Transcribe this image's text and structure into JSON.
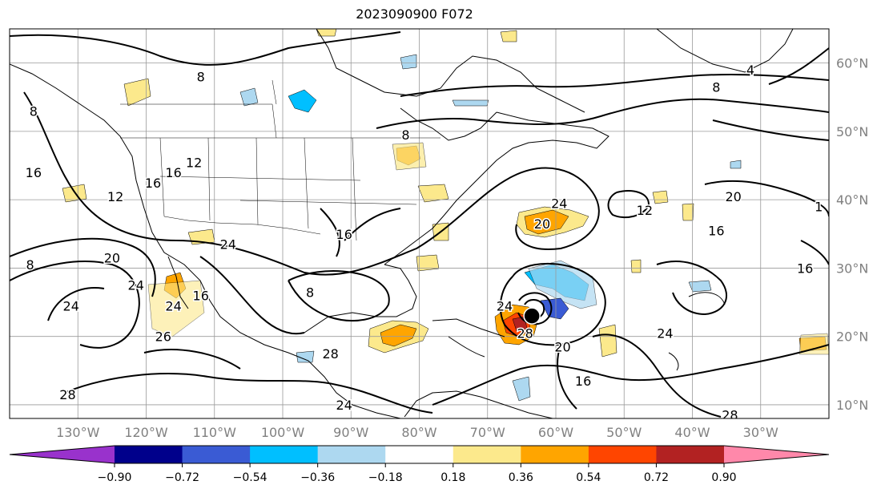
{
  "title": "2023090900 F072",
  "map": {
    "lon_range": [
      -140,
      -20
    ],
    "lat_range": [
      8,
      65
    ],
    "lon_ticks": [
      {
        "value": -130,
        "label": "130°W"
      },
      {
        "value": -120,
        "label": "120°W"
      },
      {
        "value": -110,
        "label": "110°W"
      },
      {
        "value": -100,
        "label": "100°W"
      },
      {
        "value": -90,
        "label": "90°W"
      },
      {
        "value": -80,
        "label": "80°W"
      },
      {
        "value": -70,
        "label": "70°W"
      },
      {
        "value": -60,
        "label": "60°W"
      },
      {
        "value": -50,
        "label": "50°W"
      },
      {
        "value": -40,
        "label": "40°W"
      },
      {
        "value": -30,
        "label": "30°W"
      }
    ],
    "lat_ticks": [
      {
        "value": 10,
        "label": "10°N"
      },
      {
        "value": 20,
        "label": "20°N"
      },
      {
        "value": 30,
        "label": "30°N"
      },
      {
        "value": 40,
        "label": "40°N"
      },
      {
        "value": 50,
        "label": "50°N"
      },
      {
        "value": 60,
        "label": "60°N"
      }
    ],
    "grid": true,
    "storm_marker": {
      "lon": -63.5,
      "lat": 23
    }
  },
  "contour_labels": [
    {
      "text": "8",
      "lon": -112,
      "lat": 58
    },
    {
      "text": "8",
      "lon": -136.5,
      "lat": 53
    },
    {
      "text": "8",
      "lon": -82,
      "lat": 49.5
    },
    {
      "text": "8",
      "lon": -36.5,
      "lat": 56.5
    },
    {
      "text": "4",
      "lon": -31.5,
      "lat": 59
    },
    {
      "text": "16",
      "lon": -136.5,
      "lat": 44
    },
    {
      "text": "12",
      "lon": -124.5,
      "lat": 40.5
    },
    {
      "text": "16",
      "lon": -119,
      "lat": 42.5
    },
    {
      "text": "16",
      "lon": -116,
      "lat": 44
    },
    {
      "text": "12",
      "lon": -113,
      "lat": 45.5
    },
    {
      "text": "24",
      "lon": -108,
      "lat": 33.5
    },
    {
      "text": "16",
      "lon": -91,
      "lat": 35
    },
    {
      "text": "8",
      "lon": -137,
      "lat": 30.5
    },
    {
      "text": "20",
      "lon": -125,
      "lat": 31.5
    },
    {
      "text": "24",
      "lon": -121.5,
      "lat": 27.5
    },
    {
      "text": "24",
      "lon": -131,
      "lat": 24.5
    },
    {
      "text": "26",
      "lon": -117.5,
      "lat": 20
    },
    {
      "text": "24",
      "lon": -116,
      "lat": 24.5
    },
    {
      "text": "16",
      "lon": -112,
      "lat": 26
    },
    {
      "text": "8",
      "lon": -96,
      "lat": 26.5
    },
    {
      "text": "28",
      "lon": -93,
      "lat": 17.5
    },
    {
      "text": "28",
      "lon": -131.5,
      "lat": 11.5
    },
    {
      "text": "24",
      "lon": -91,
      "lat": 10
    },
    {
      "text": "24",
      "lon": -59.5,
      "lat": 39.5
    },
    {
      "text": "20",
      "lon": -62,
      "lat": 36.5
    },
    {
      "text": "12",
      "lon": -47,
      "lat": 38.5
    },
    {
      "text": "20",
      "lon": -34,
      "lat": 40.5
    },
    {
      "text": "16",
      "lon": -36.5,
      "lat": 35.5
    },
    {
      "text": "16",
      "lon": -23.5,
      "lat": 30
    },
    {
      "text": "1",
      "lon": -21.5,
      "lat": 39
    },
    {
      "text": "24",
      "lon": -44,
      "lat": 20.5
    },
    {
      "text": "20",
      "lon": -59,
      "lat": 18.5
    },
    {
      "text": "16",
      "lon": -56,
      "lat": 13.5
    },
    {
      "text": "28",
      "lon": -64.5,
      "lat": 20.5
    },
    {
      "text": "24",
      "lon": -67.5,
      "lat": 24.5
    },
    {
      "text": "28",
      "lon": -34.5,
      "lat": 8.5
    }
  ],
  "colorbar": {
    "colors": [
      "#9932cc",
      "#00008b",
      "#3a5bd4",
      "#00bfff",
      "#add8f0",
      "#ffffff",
      "#fce98c",
      "#ffa500",
      "#ff4500",
      "#b22222",
      "#ff88aa"
    ],
    "tick_labels": [
      "−0.90",
      "−0.72",
      "−0.54",
      "−0.36",
      "−0.18",
      "0.18",
      "0.36",
      "0.54",
      "0.72",
      "0.90"
    ],
    "tick_values": [
      -0.9,
      -0.72,
      -0.54,
      -0.36,
      -0.18,
      0.18,
      0.36,
      0.54,
      0.72,
      0.9
    ],
    "extend": "both"
  }
}
